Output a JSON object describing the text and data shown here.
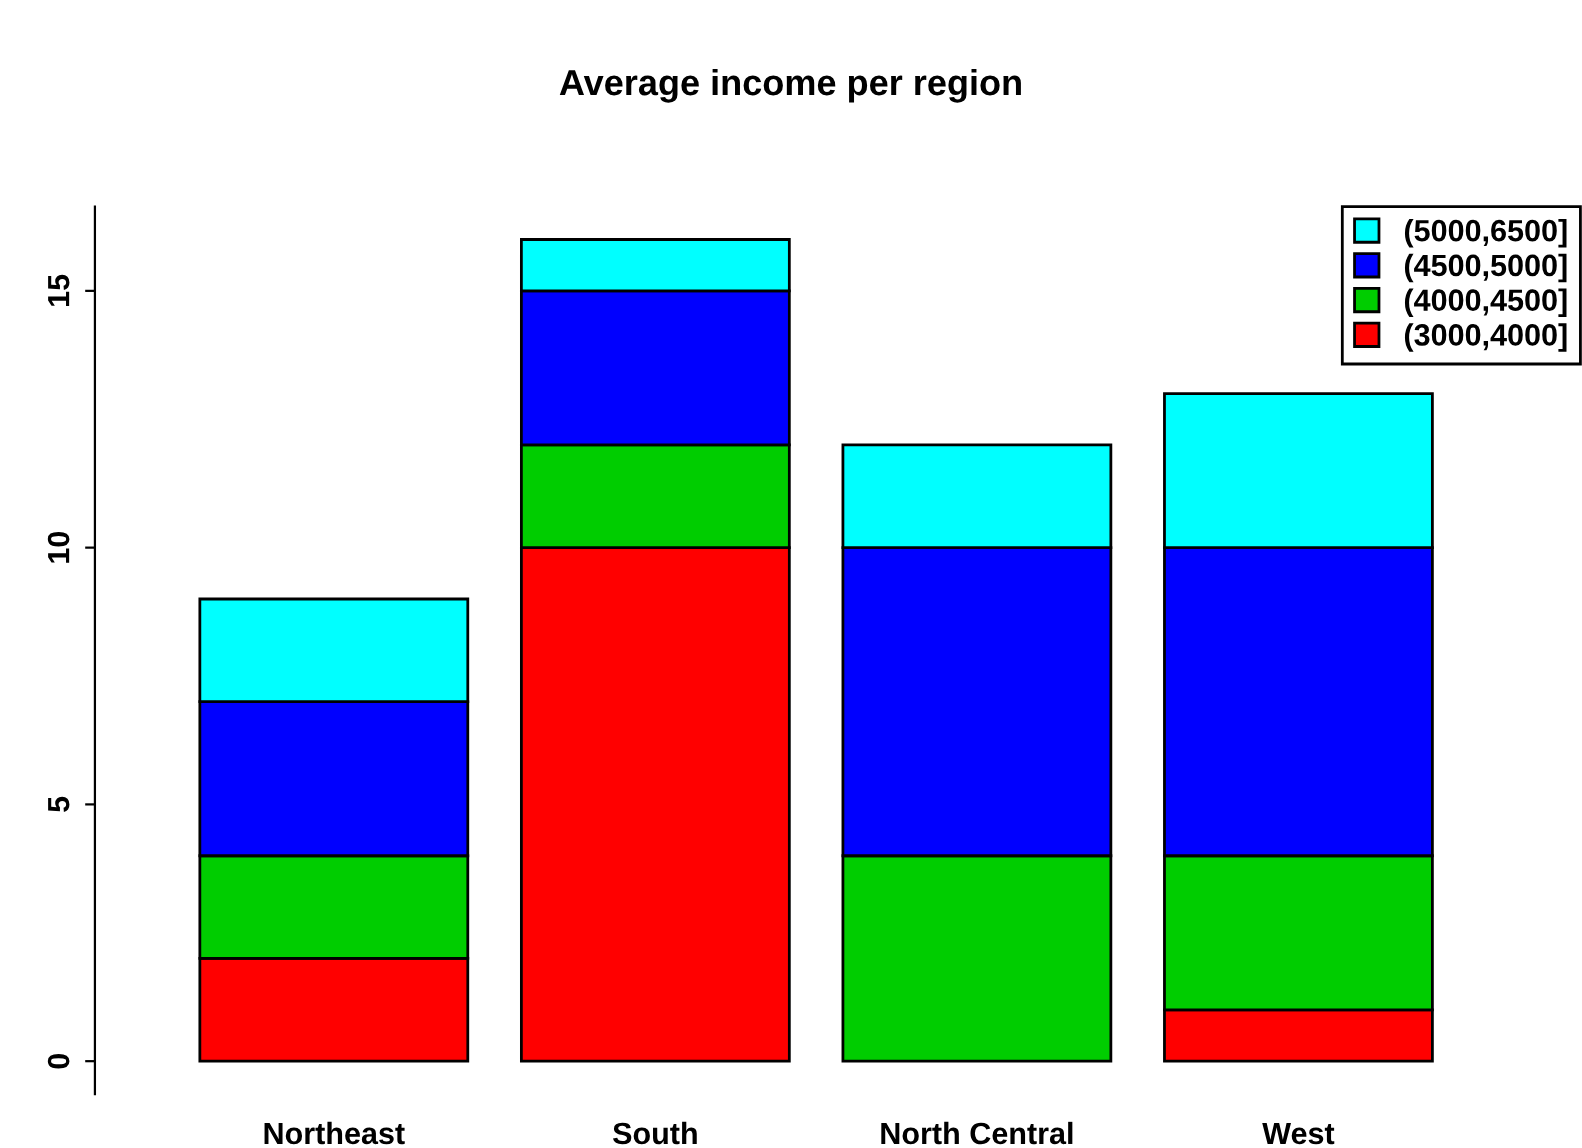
{
  "chart_data": {
    "type": "bar",
    "title": "Average income per region",
    "stacked": true,
    "categories": [
      "Northeast",
      "South",
      "North Central",
      "West"
    ],
    "series": [
      {
        "name": "(3000,4000]",
        "color": "#ff0000",
        "values": [
          2,
          10,
          0,
          1
        ]
      },
      {
        "name": "(4000,4500]",
        "color": "#00cd00",
        "values": [
          2,
          2,
          4,
          3
        ]
      },
      {
        "name": "(4500,5000]",
        "color": "#0000ff",
        "values": [
          3,
          3,
          6,
          6
        ]
      },
      {
        "name": "(5000,6500]",
        "color": "#00ffff",
        "values": [
          2,
          1,
          2,
          3
        ]
      }
    ],
    "ylim": [
      -0.64,
      16.64
    ],
    "yticks": [
      0,
      5,
      10,
      15
    ],
    "legend": "top right",
    "grid": false
  }
}
